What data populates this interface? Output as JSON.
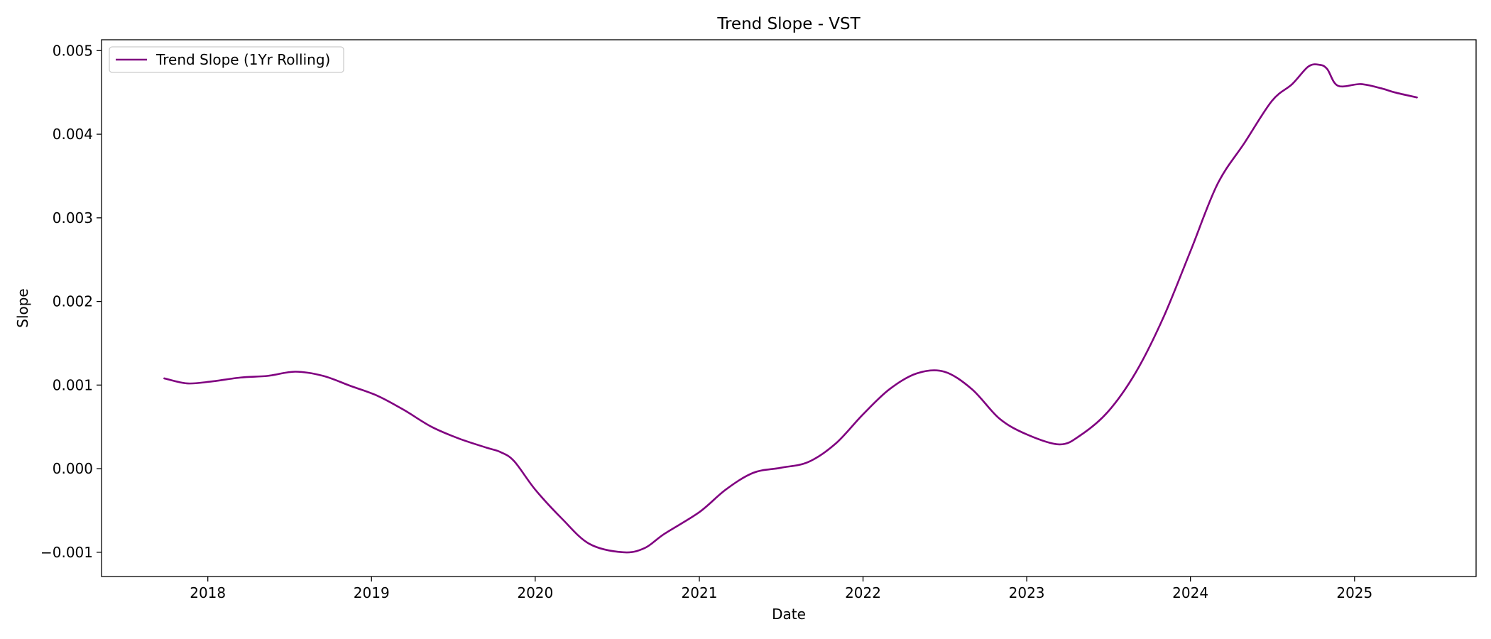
{
  "chart_data": {
    "type": "line",
    "title": "Trend Slope - VST",
    "xlabel": "Date",
    "ylabel": "Slope",
    "xlim": [
      "2017-05-09",
      "2025-09-29"
    ],
    "ylim": [
      -0.00129,
      0.00513
    ],
    "x_ticks": [
      {
        "date": "2018-01-01",
        "label": "2018"
      },
      {
        "date": "2019-01-01",
        "label": "2019"
      },
      {
        "date": "2020-01-01",
        "label": "2020"
      },
      {
        "date": "2021-01-01",
        "label": "2021"
      },
      {
        "date": "2022-01-01",
        "label": "2022"
      },
      {
        "date": "2023-01-01",
        "label": "2023"
      },
      {
        "date": "2024-01-01",
        "label": "2024"
      },
      {
        "date": "2025-01-01",
        "label": "2025"
      }
    ],
    "y_ticks": [
      {
        "value": -0.001,
        "label": "−0.001"
      },
      {
        "value": 0.0,
        "label": "0.000"
      },
      {
        "value": 0.001,
        "label": "0.001"
      },
      {
        "value": 0.002,
        "label": "0.002"
      },
      {
        "value": 0.003,
        "label": "0.003"
      },
      {
        "value": 0.004,
        "label": "0.004"
      },
      {
        "value": 0.005,
        "label": "0.005"
      }
    ],
    "grid": false,
    "legend": {
      "position": "top-left",
      "entries": [
        {
          "label": "Trend Slope (1Yr Rolling)",
          "color": "#800080"
        }
      ]
    },
    "series": [
      {
        "name": "Trend Slope (1Yr Rolling)",
        "color": "#800080",
        "points": [
          [
            "2017-09-26",
            0.00108
          ],
          [
            "2017-11-15",
            0.00102
          ],
          [
            "2018-01-05",
            0.00104
          ],
          [
            "2018-03-15",
            0.00109
          ],
          [
            "2018-05-15",
            0.00111
          ],
          [
            "2018-07-15",
            0.00116
          ],
          [
            "2018-09-15",
            0.00111
          ],
          [
            "2018-11-15",
            0.00099
          ],
          [
            "2019-01-15",
            0.00087
          ],
          [
            "2019-03-15",
            0.0007
          ],
          [
            "2019-05-15",
            0.0005
          ],
          [
            "2019-07-15",
            0.00036
          ],
          [
            "2019-09-15",
            0.00025
          ],
          [
            "2019-10-15",
            0.0002
          ],
          [
            "2019-11-15",
            9e-05
          ],
          [
            "2020-01-01",
            -0.00025
          ],
          [
            "2020-03-01",
            -0.0006
          ],
          [
            "2020-05-01",
            -0.0009
          ],
          [
            "2020-07-15",
            -0.001
          ],
          [
            "2020-09-01",
            -0.00095
          ],
          [
            "2020-10-15",
            -0.00078
          ],
          [
            "2021-01-01",
            -0.00052
          ],
          [
            "2021-03-01",
            -0.00025
          ],
          [
            "2021-05-01",
            -5e-05
          ],
          [
            "2021-07-01",
            1e-05
          ],
          [
            "2021-09-01",
            8e-05
          ],
          [
            "2021-11-01",
            0.0003
          ],
          [
            "2022-01-01",
            0.00065
          ],
          [
            "2022-03-01",
            0.00095
          ],
          [
            "2022-05-01",
            0.00114
          ],
          [
            "2022-07-01",
            0.00116
          ],
          [
            "2022-09-01",
            0.00095
          ],
          [
            "2022-11-01",
            0.0006
          ],
          [
            "2023-01-01",
            0.00041
          ],
          [
            "2023-03-15",
            0.00029
          ],
          [
            "2023-05-01",
            0.0004
          ],
          [
            "2023-07-01",
            0.00068
          ],
          [
            "2023-09-01",
            0.00115
          ],
          [
            "2023-11-01",
            0.0018
          ],
          [
            "2024-01-01",
            0.0026
          ],
          [
            "2024-03-01",
            0.0034
          ],
          [
            "2024-05-01",
            0.0039
          ],
          [
            "2024-07-01",
            0.0044
          ],
          [
            "2024-08-15",
            0.0046
          ],
          [
            "2024-09-20",
            0.00481
          ],
          [
            "2024-10-15",
            0.00483
          ],
          [
            "2024-11-01",
            0.00478
          ],
          [
            "2024-11-25",
            0.00458
          ],
          [
            "2025-01-15",
            0.0046
          ],
          [
            "2025-03-01",
            0.00455
          ],
          [
            "2025-04-01",
            0.0045
          ],
          [
            "2025-05-20",
            0.00444
          ]
        ]
      }
    ]
  }
}
